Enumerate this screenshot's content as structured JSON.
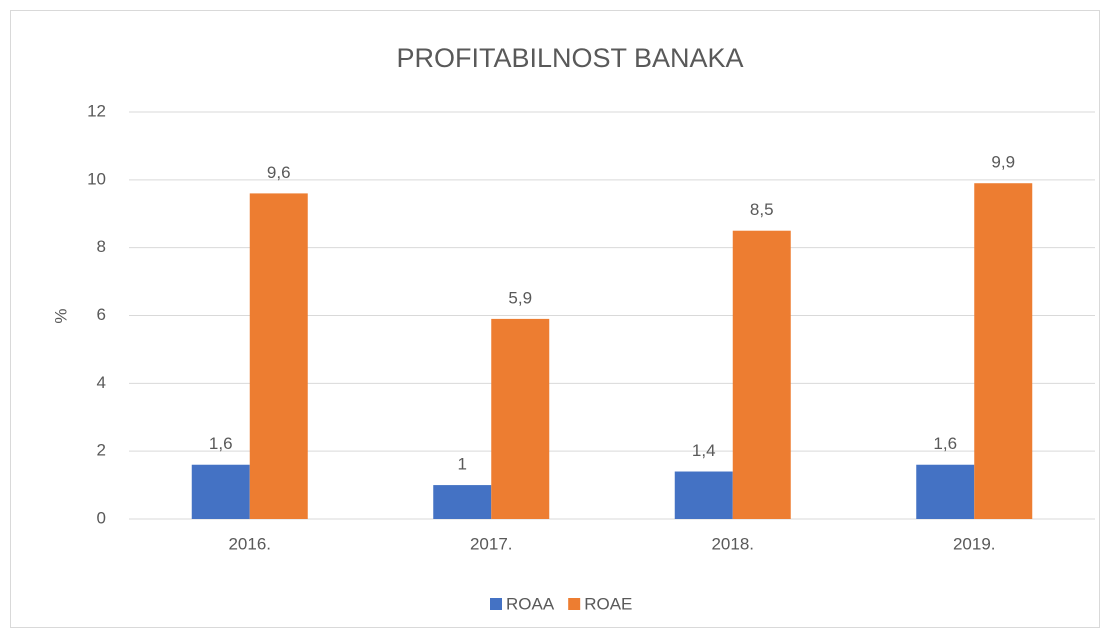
{
  "chart_data": {
    "type": "bar",
    "title": "PROFITABILNOST BANAKA",
    "y_label": "%",
    "categories": [
      "2016.",
      "2017.",
      "2018.",
      "2019."
    ],
    "series": [
      {
        "name": "ROAA",
        "color": "#4472c4",
        "values": [
          1.6,
          1,
          1.4,
          1.6
        ],
        "value_labels": [
          "1,6",
          "1",
          "1,4",
          "1,6"
        ]
      },
      {
        "name": "ROAE",
        "color": "#ed7d31",
        "values": [
          9.6,
          5.9,
          8.5,
          9.9
        ],
        "value_labels": [
          "9,6",
          "5,9",
          "8,5",
          "9,9"
        ]
      }
    ],
    "ylim": [
      0,
      12
    ],
    "yticks": [
      0,
      2,
      4,
      6,
      8,
      10,
      12
    ],
    "grid": true,
    "legend": "bottom"
  }
}
